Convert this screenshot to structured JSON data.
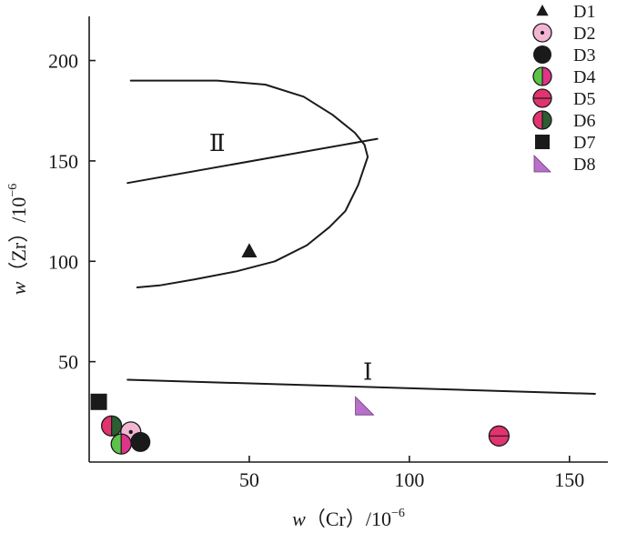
{
  "chart_data": {
    "type": "scatter",
    "title": "",
    "xlabel": {
      "var": "w",
      "paren_open": "（",
      "element": "Cr",
      "paren_close": "）",
      "unit": "/10",
      "exp": "−6"
    },
    "ylabel": {
      "var": "w",
      "paren_open": "（",
      "element": "Zr",
      "paren_close": "）",
      "unit": "/10",
      "exp": "−6"
    },
    "xlim": [
      0,
      162
    ],
    "ylim": [
      0,
      222
    ],
    "x_ticks": [
      50,
      100,
      150
    ],
    "y_ticks": [
      50,
      100,
      150,
      200
    ],
    "grid": false,
    "legend_position": "top-right",
    "series": [
      {
        "name": "D1",
        "marker": "triangle",
        "colors": [
          "#1a1a1a"
        ],
        "points": [
          [
            50,
            105
          ]
        ]
      },
      {
        "name": "D2",
        "marker": "circle-dot",
        "colors": [
          "#f3b6d2",
          "#1a1a1a"
        ],
        "points": [
          [
            13,
            15
          ]
        ]
      },
      {
        "name": "D3",
        "marker": "circle",
        "colors": [
          "#1a1a1a"
        ],
        "points": [
          [
            16,
            10
          ]
        ]
      },
      {
        "name": "D4",
        "marker": "circle-split-green-pink",
        "colors": [
          "#5ec24a",
          "#e0338a"
        ],
        "points": [
          [
            10,
            9
          ]
        ]
      },
      {
        "name": "D5",
        "marker": "circle-line",
        "colors": [
          "#e0336f"
        ],
        "points": [
          [
            128,
            13
          ]
        ]
      },
      {
        "name": "D6",
        "marker": "circle-split-pink-green",
        "colors": [
          "#e0336f",
          "#2b5e33"
        ],
        "points": [
          [
            7,
            18
          ]
        ]
      },
      {
        "name": "D7",
        "marker": "square",
        "colors": [
          "#1a1a1a"
        ],
        "points": [
          [
            3,
            30
          ]
        ]
      },
      {
        "name": "D8",
        "marker": "corner-triangle",
        "colors": [
          "#b870c9"
        ],
        "points": [
          [
            86,
            28
          ]
        ]
      }
    ],
    "regions": [
      {
        "label": "Ⅱ",
        "at": [
          40,
          155
        ]
      },
      {
        "label": "Ⅰ",
        "at": [
          87,
          41
        ]
      }
    ],
    "boundaries": [
      {
        "name": "curve-II-envelope",
        "points": [
          [
            13,
            190
          ],
          [
            40,
            190
          ],
          [
            55,
            188
          ],
          [
            67,
            182
          ],
          [
            76,
            173
          ],
          [
            83,
            164
          ],
          [
            86,
            158
          ],
          [
            87,
            152
          ],
          [
            84,
            138
          ],
          [
            80,
            125
          ],
          [
            75,
            117
          ],
          [
            68,
            108
          ],
          [
            58,
            100
          ],
          [
            46,
            95
          ],
          [
            33,
            91
          ],
          [
            22,
            88
          ],
          [
            15,
            87
          ]
        ]
      },
      {
        "name": "line-II",
        "points": [
          [
            12,
            139
          ],
          [
            90,
            161
          ]
        ]
      },
      {
        "name": "line-I",
        "points": [
          [
            12,
            41
          ],
          [
            158,
            34
          ]
        ]
      }
    ]
  }
}
